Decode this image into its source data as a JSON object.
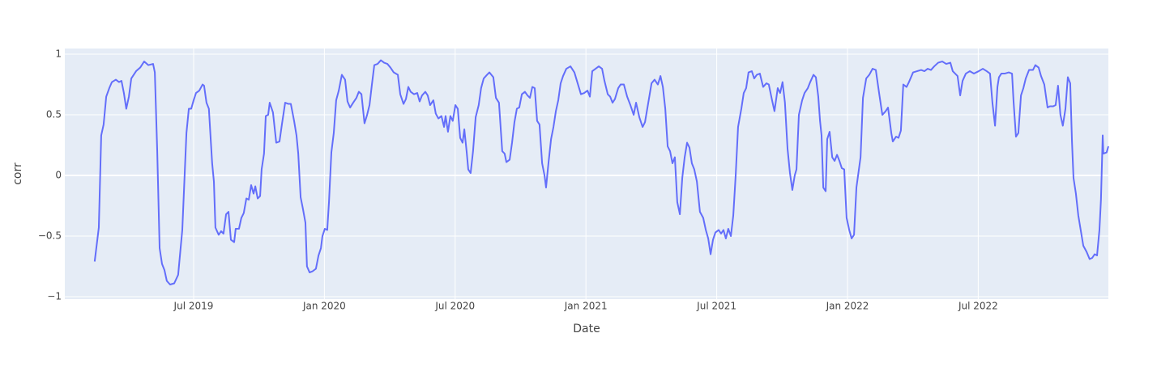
{
  "chart_data": {
    "type": "line",
    "x_label": "Date",
    "y_label": "corr",
    "grid": true,
    "xlim": [
      0.09,
      47.97
    ],
    "xticks": [
      {
        "value": 6,
        "label": "Jul 2019"
      },
      {
        "value": 12,
        "label": "Jan 2020"
      },
      {
        "value": 18,
        "label": "Jul 2020"
      },
      {
        "value": 24,
        "label": "Jan 2021"
      },
      {
        "value": 30,
        "label": "Jul 2021"
      },
      {
        "value": 36,
        "label": "Jan 2022"
      },
      {
        "value": 42,
        "label": "Jul 2022"
      }
    ],
    "ylim": [
      -1.02,
      1.047
    ],
    "yticks": [
      {
        "value": -1,
        "label": "−1"
      },
      {
        "value": -0.5,
        "label": "−0.5"
      },
      0,
      0.5,
      1
    ],
    "x": [
      1.46,
      1.65,
      1.76,
      1.87,
      1.99,
      2.13,
      2.25,
      2.43,
      2.58,
      2.69,
      2.8,
      2.91,
      3.03,
      3.14,
      3.36,
      3.55,
      3.73,
      3.92,
      4.14,
      4.22,
      4.33,
      4.44,
      4.55,
      4.66,
      4.77,
      4.92,
      5.11,
      5.29,
      5.48,
      5.67,
      5.78,
      5.89,
      6.0,
      6.11,
      6.26,
      6.41,
      6.48,
      6.59,
      6.7,
      6.85,
      6.93,
      7.0,
      7.15,
      7.26,
      7.37,
      7.49,
      7.6,
      7.71,
      7.86,
      7.93,
      8.08,
      8.19,
      8.3,
      8.42,
      8.53,
      8.64,
      8.75,
      8.83,
      8.94,
      9.05,
      9.12,
      9.23,
      9.31,
      9.42,
      9.49,
      9.64,
      9.79,
      9.94,
      10.05,
      10.2,
      10.35,
      10.46,
      10.61,
      10.72,
      10.8,
      10.91,
      11.02,
      11.13,
      11.2,
      11.32,
      11.46,
      11.61,
      11.73,
      11.84,
      11.91,
      12.02,
      12.13,
      12.21,
      12.32,
      12.43,
      12.54,
      12.66,
      12.8,
      12.95,
      13.06,
      13.18,
      13.32,
      13.47,
      13.58,
      13.7,
      13.84,
      13.96,
      14.07,
      14.18,
      14.29,
      14.44,
      14.59,
      14.74,
      14.89,
      15.03,
      15.18,
      15.37,
      15.48,
      15.63,
      15.74,
      15.85,
      15.96,
      16.11,
      16.26,
      16.37,
      16.48,
      16.63,
      16.74,
      16.85,
      17.0,
      17.11,
      17.23,
      17.37,
      17.49,
      17.56,
      17.67,
      17.78,
      17.89,
      18.01,
      18.12,
      18.23,
      18.34,
      18.42,
      18.53,
      18.6,
      18.71,
      18.82,
      18.94,
      19.08,
      19.19,
      19.31,
      19.46,
      19.57,
      19.75,
      19.87,
      20.01,
      20.16,
      20.27,
      20.35,
      20.5,
      20.61,
      20.72,
      20.83,
      20.94,
      21.06,
      21.2,
      21.32,
      21.43,
      21.54,
      21.65,
      21.76,
      21.87,
      21.99,
      22.1,
      22.17,
      22.28,
      22.4,
      22.51,
      22.62,
      22.73,
      22.84,
      22.95,
      23.1,
      23.29,
      23.47,
      23.62,
      23.77,
      23.92,
      24.07,
      24.18,
      24.29,
      24.44,
      24.59,
      24.74,
      24.85,
      25.0,
      25.11,
      25.22,
      25.33,
      25.48,
      25.59,
      25.74,
      25.89,
      26.04,
      26.19,
      26.3,
      26.45,
      26.6,
      26.71,
      26.86,
      27.01,
      27.15,
      27.3,
      27.42,
      27.53,
      27.64,
      27.75,
      27.86,
      27.97,
      28.08,
      28.19,
      28.31,
      28.42,
      28.53,
      28.64,
      28.75,
      28.86,
      28.97,
      29.09,
      29.23,
      29.38,
      29.5,
      29.61,
      29.72,
      29.83,
      29.94,
      30.09,
      30.2,
      30.31,
      30.42,
      30.53,
      30.65,
      30.76,
      30.87,
      30.98,
      31.13,
      31.24,
      31.35,
      31.46,
      31.61,
      31.72,
      31.84,
      31.98,
      32.13,
      32.28,
      32.39,
      32.54,
      32.65,
      32.8,
      32.91,
      33.02,
      33.13,
      33.25,
      33.36,
      33.47,
      33.58,
      33.66,
      33.77,
      33.92,
      34.03,
      34.18,
      34.29,
      34.44,
      34.55,
      34.66,
      34.74,
      34.81,
      34.89,
      35.0,
      35.07,
      35.18,
      35.3,
      35.41,
      35.52,
      35.63,
      35.74,
      35.85,
      35.96,
      36.08,
      36.19,
      36.3,
      36.41,
      36.6,
      36.71,
      36.86,
      37.0,
      37.15,
      37.3,
      37.45,
      37.6,
      37.75,
      37.86,
      38.01,
      38.08,
      38.23,
      38.34,
      38.45,
      38.56,
      38.71,
      38.82,
      39.01,
      39.19,
      39.38,
      39.53,
      39.68,
      39.83,
      39.98,
      40.16,
      40.35,
      40.53,
      40.72,
      40.83,
      41.05,
      41.17,
      41.28,
      41.43,
      41.61,
      41.8,
      42.02,
      42.21,
      42.39,
      42.54,
      42.65,
      42.77,
      42.88,
      42.95,
      43.06,
      43.21,
      43.4,
      43.55,
      43.62,
      43.73,
      43.84,
      43.96,
      44.07,
      44.18,
      44.33,
      44.51,
      44.62,
      44.77,
      44.88,
      45.03,
      45.18,
      45.29,
      45.44,
      45.55,
      45.66,
      45.77,
      45.88,
      46.0,
      46.11,
      46.22,
      46.3,
      46.37,
      46.48,
      46.59,
      46.7,
      46.82,
      46.97,
      47.11,
      47.23,
      47.34,
      47.45,
      47.56,
      47.63,
      47.71,
      47.74,
      47.89,
      47.97
    ],
    "series": [
      {
        "name": "corr",
        "color": "#636efa",
        "values": [
          -0.71,
          -0.43,
          0.33,
          0.42,
          0.65,
          0.72,
          0.77,
          0.79,
          0.77,
          0.78,
          0.68,
          0.55,
          0.65,
          0.8,
          0.86,
          0.89,
          0.94,
          0.91,
          0.92,
          0.85,
          0.2,
          -0.6,
          -0.73,
          -0.78,
          -0.87,
          -0.9,
          -0.89,
          -0.82,
          -0.45,
          0.35,
          0.55,
          0.55,
          0.62,
          0.68,
          0.7,
          0.75,
          0.74,
          0.6,
          0.55,
          0.1,
          -0.05,
          -0.43,
          -0.49,
          -0.46,
          -0.48,
          -0.32,
          -0.3,
          -0.53,
          -0.55,
          -0.44,
          -0.44,
          -0.35,
          -0.31,
          -0.19,
          -0.2,
          -0.08,
          -0.15,
          -0.09,
          -0.19,
          -0.17,
          0.05,
          0.18,
          0.49,
          0.5,
          0.6,
          0.52,
          0.27,
          0.28,
          0.42,
          0.6,
          0.59,
          0.59,
          0.45,
          0.33,
          0.18,
          -0.18,
          -0.28,
          -0.39,
          -0.75,
          -0.8,
          -0.79,
          -0.77,
          -0.66,
          -0.6,
          -0.5,
          -0.44,
          -0.45,
          -0.22,
          0.19,
          0.35,
          0.62,
          0.7,
          0.83,
          0.79,
          0.61,
          0.56,
          0.6,
          0.64,
          0.69,
          0.67,
          0.43,
          0.5,
          0.58,
          0.75,
          0.91,
          0.92,
          0.95,
          0.93,
          0.92,
          0.89,
          0.85,
          0.83,
          0.67,
          0.59,
          0.63,
          0.73,
          0.69,
          0.67,
          0.68,
          0.61,
          0.66,
          0.69,
          0.66,
          0.58,
          0.62,
          0.51,
          0.47,
          0.49,
          0.4,
          0.49,
          0.36,
          0.49,
          0.45,
          0.58,
          0.55,
          0.31,
          0.27,
          0.38,
          0.19,
          0.05,
          0.02,
          0.2,
          0.48,
          0.58,
          0.72,
          0.8,
          0.83,
          0.85,
          0.81,
          0.64,
          0.6,
          0.2,
          0.18,
          0.11,
          0.13,
          0.27,
          0.44,
          0.55,
          0.56,
          0.67,
          0.69,
          0.66,
          0.64,
          0.73,
          0.72,
          0.45,
          0.42,
          0.1,
          0.0,
          -0.1,
          0.1,
          0.3,
          0.4,
          0.53,
          0.62,
          0.76,
          0.82,
          0.88,
          0.9,
          0.85,
          0.76,
          0.67,
          0.68,
          0.7,
          0.65,
          0.86,
          0.88,
          0.9,
          0.88,
          0.78,
          0.67,
          0.65,
          0.6,
          0.63,
          0.72,
          0.75,
          0.75,
          0.65,
          0.58,
          0.5,
          0.6,
          0.48,
          0.4,
          0.44,
          0.6,
          0.76,
          0.79,
          0.75,
          0.82,
          0.73,
          0.55,
          0.24,
          0.2,
          0.1,
          0.15,
          -0.22,
          -0.32,
          -0.02,
          0.15,
          0.27,
          0.23,
          0.1,
          0.05,
          -0.05,
          -0.3,
          -0.35,
          -0.45,
          -0.52,
          -0.65,
          -0.53,
          -0.47,
          -0.45,
          -0.48,
          -0.45,
          -0.52,
          -0.44,
          -0.5,
          -0.33,
          0.0,
          0.4,
          0.55,
          0.68,
          0.72,
          0.85,
          0.86,
          0.8,
          0.83,
          0.84,
          0.73,
          0.76,
          0.75,
          0.62,
          0.53,
          0.72,
          0.68,
          0.77,
          0.6,
          0.22,
          0.02,
          -0.12,
          0.0,
          0.05,
          0.5,
          0.62,
          0.68,
          0.72,
          0.77,
          0.83,
          0.81,
          0.65,
          0.45,
          0.33,
          -0.1,
          -0.13,
          0.3,
          0.36,
          0.15,
          0.12,
          0.17,
          0.12,
          0.06,
          0.05,
          -0.35,
          -0.45,
          -0.52,
          -0.49,
          -0.1,
          0.15,
          0.64,
          0.8,
          0.83,
          0.88,
          0.87,
          0.68,
          0.5,
          0.53,
          0.56,
          0.35,
          0.28,
          0.32,
          0.31,
          0.37,
          0.75,
          0.73,
          0.77,
          0.85,
          0.86,
          0.87,
          0.86,
          0.88,
          0.87,
          0.9,
          0.93,
          0.94,
          0.92,
          0.93,
          0.86,
          0.82,
          0.66,
          0.78,
          0.84,
          0.86,
          0.84,
          0.86,
          0.88,
          0.86,
          0.84,
          0.6,
          0.41,
          0.73,
          0.81,
          0.84,
          0.84,
          0.85,
          0.84,
          0.61,
          0.32,
          0.35,
          0.66,
          0.72,
          0.8,
          0.87,
          0.87,
          0.91,
          0.89,
          0.82,
          0.75,
          0.56,
          0.57,
          0.57,
          0.58,
          0.74,
          0.5,
          0.41,
          0.55,
          0.81,
          0.76,
          0.28,
          -0.02,
          -0.15,
          -0.33,
          -0.45,
          -0.58,
          -0.63,
          -0.69,
          -0.68,
          -0.65,
          -0.66,
          -0.45,
          -0.2,
          0.33,
          0.18,
          0.19,
          0.24
        ]
      }
    ]
  }
}
